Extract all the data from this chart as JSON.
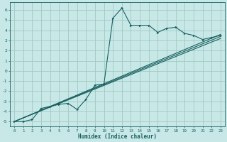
{
  "title": "",
  "xlabel": "Humidex (Indice chaleur)",
  "ylabel": "",
  "bg_color": "#c8e8e8",
  "grid_color": "#a0c8c0",
  "line_color": "#1a6060",
  "xlim": [
    -0.5,
    23.5
  ],
  "ylim": [
    -5.5,
    6.8
  ],
  "xticks": [
    0,
    1,
    2,
    3,
    4,
    5,
    6,
    7,
    8,
    9,
    10,
    11,
    12,
    13,
    14,
    15,
    16,
    17,
    18,
    19,
    20,
    21,
    22,
    23
  ],
  "yticks": [
    -5,
    -4,
    -3,
    -2,
    -1,
    0,
    1,
    2,
    3,
    4,
    5,
    6
  ],
  "series1_x": [
    0,
    1,
    2,
    3,
    4,
    5,
    6,
    7,
    8,
    9,
    10,
    11,
    12,
    13,
    14,
    15,
    16,
    17,
    18,
    19,
    20,
    21,
    22,
    23
  ],
  "series1_y": [
    -5.0,
    -5.0,
    -4.8,
    -3.7,
    -3.5,
    -3.3,
    -3.2,
    -3.8,
    -2.8,
    -1.4,
    -1.3,
    5.2,
    6.2,
    4.5,
    4.5,
    4.5,
    3.8,
    4.2,
    4.3,
    3.7,
    3.5,
    3.1,
    3.3,
    3.5
  ],
  "series2_x": [
    0,
    23
  ],
  "series2_y": [
    -5.0,
    3.6
  ],
  "series3_x": [
    0,
    23
  ],
  "series3_y": [
    -5.0,
    3.4
  ],
  "series4_x": [
    0,
    23
  ],
  "series4_y": [
    -5.0,
    3.2
  ]
}
